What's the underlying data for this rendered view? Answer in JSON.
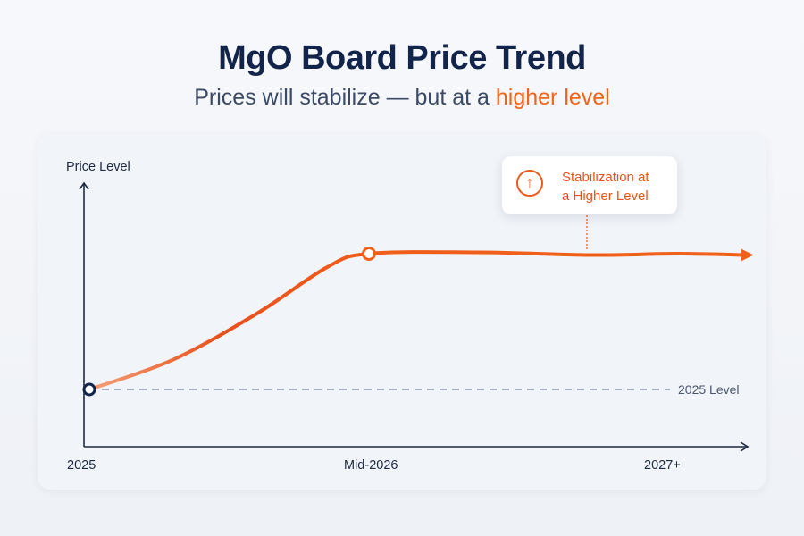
{
  "title": "MgO Board Price Trend",
  "subtitle": {
    "prefix": "Prices will stabilize — but at a ",
    "highlight": "higher level"
  },
  "colors": {
    "title": "#13244a",
    "accent": "#f26418",
    "line_start": "#f5a07a",
    "line_mid": "#e5481a",
    "line_end": "#f26b1d",
    "axis": "#1e2a44",
    "reference": "#8a97ad"
  },
  "chart_data": {
    "type": "line",
    "title": "MgO Board Price Trend",
    "xlabel": "",
    "ylabel": "Price Level",
    "x_ticks": [
      "2025",
      "Mid-2026",
      "2027+"
    ],
    "x": [
      0,
      0.3,
      0.6,
      0.85,
      1,
      1.4,
      1.8,
      2.1,
      2.35
    ],
    "y": [
      0,
      0.22,
      0.56,
      0.9,
      1,
      1.01,
      0.99,
      1.0,
      0.99
    ],
    "y_unit": "relative to 2025 level (0 = 2025 level, 1 = stabilized higher level)",
    "markers": [
      {
        "x": 0,
        "label": "2025"
      },
      {
        "x": 1,
        "label": "Mid-2026"
      }
    ],
    "reference_line": {
      "y": 0,
      "label": "2025 Level",
      "style": "dashed"
    },
    "annotation": {
      "text_line1": "Stabilization at",
      "text_line2": "a Higher Level",
      "icon": "arrow-up-circle-icon"
    },
    "grid": false,
    "legend": "none"
  }
}
